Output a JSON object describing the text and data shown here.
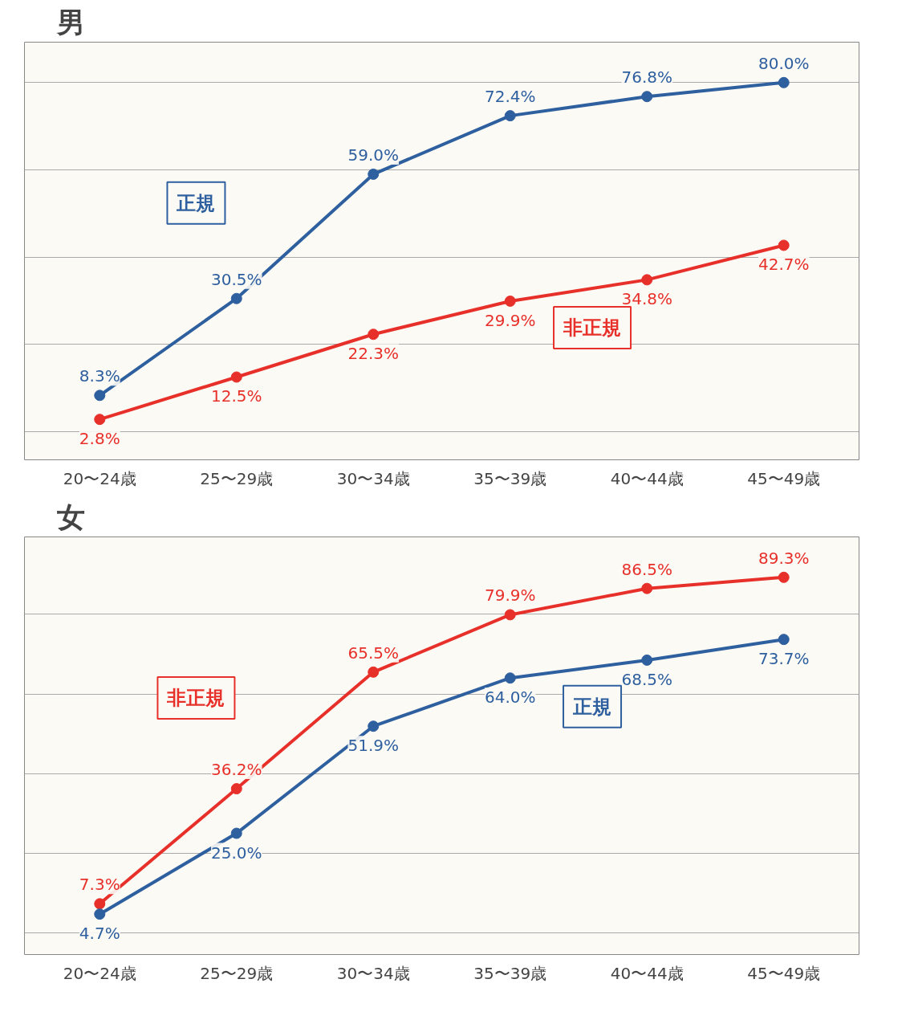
{
  "chart_data": [
    {
      "type": "line",
      "title": "男",
      "categories": [
        "20〜24歳",
        "25〜29歳",
        "30〜34歳",
        "35〜39歳",
        "40〜44歳",
        "45〜49歳"
      ],
      "series": [
        {
          "name": "正規",
          "color": "#2e5f9e",
          "values": [
            8.3,
            30.5,
            59.0,
            72.4,
            76.8,
            80.0
          ],
          "value_labels": [
            "8.3%",
            "30.5%",
            "59.0%",
            "72.4%",
            "76.8%",
            "80.0%"
          ]
        },
        {
          "name": "非正規",
          "color": "#e8302a",
          "values": [
            2.8,
            12.5,
            22.3,
            29.9,
            34.8,
            42.7
          ],
          "value_labels": [
            "2.8%",
            "12.5%",
            "22.3%",
            "29.9%",
            "34.8%",
            "42.7%"
          ]
        }
      ],
      "tick_labels": "x",
      "grid": "y",
      "legend": false,
      "marker": "circle",
      "line_style": "solid"
    },
    {
      "type": "line",
      "title": "女",
      "categories": [
        "20〜24歳",
        "25〜29歳",
        "30〜34歳",
        "35〜39歳",
        "40〜44歳",
        "45〜49歳"
      ],
      "series": [
        {
          "name": "非正規",
          "color": "#e8302a",
          "values": [
            7.3,
            36.2,
            65.5,
            79.9,
            86.5,
            89.3
          ],
          "value_labels": [
            "7.3%",
            "36.2%",
            "65.5%",
            "79.9%",
            "86.5%",
            "89.3%"
          ]
        },
        {
          "name": "正規",
          "color": "#2e5f9e",
          "values": [
            4.7,
            25.0,
            51.9,
            64.0,
            68.5,
            73.7
          ],
          "value_labels": [
            "4.7%",
            "25.0%",
            "51.9%",
            "64.0%",
            "68.5%",
            "73.7%"
          ]
        }
      ],
      "tick_labels": "x",
      "grid": "y",
      "legend": false,
      "marker": "circle",
      "line_style": "solid"
    }
  ]
}
